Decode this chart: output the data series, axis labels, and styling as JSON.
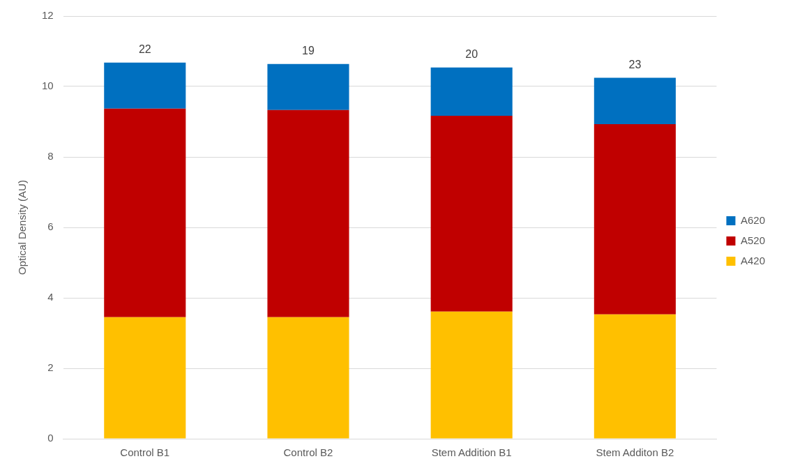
{
  "chart_data": {
    "type": "bar",
    "stacked": true,
    "ylabel": "Optical Density (AU)",
    "categories": [
      "Control B1",
      "Control B2",
      "Stem Addition B1",
      "Stem Additon B2"
    ],
    "series": [
      {
        "name": "A420",
        "color": "#ffc000",
        "values": [
          3.45,
          3.45,
          3.61,
          3.53
        ]
      },
      {
        "name": "A520",
        "color": "#c00000",
        "values": [
          5.92,
          5.88,
          5.56,
          5.4
        ]
      },
      {
        "name": "A620",
        "color": "#0070c0",
        "values": [
          1.31,
          1.31,
          1.37,
          1.32
        ]
      }
    ],
    "ylim": [
      0,
      12
    ],
    "yticks": [
      0,
      2,
      4,
      6,
      8,
      10,
      12
    ],
    "grid": "y",
    "legend": "right",
    "annotations": [
      {
        "text": "22",
        "x": "Control B1",
        "y": 10.68
      },
      {
        "text": "19",
        "x": "Control B2",
        "y": 10.64
      },
      {
        "text": "20",
        "x": "Stem Addition B1",
        "y": 10.54
      },
      {
        "text": "23",
        "x": "Stem Additon B2",
        "y": 10.25
      }
    ]
  }
}
